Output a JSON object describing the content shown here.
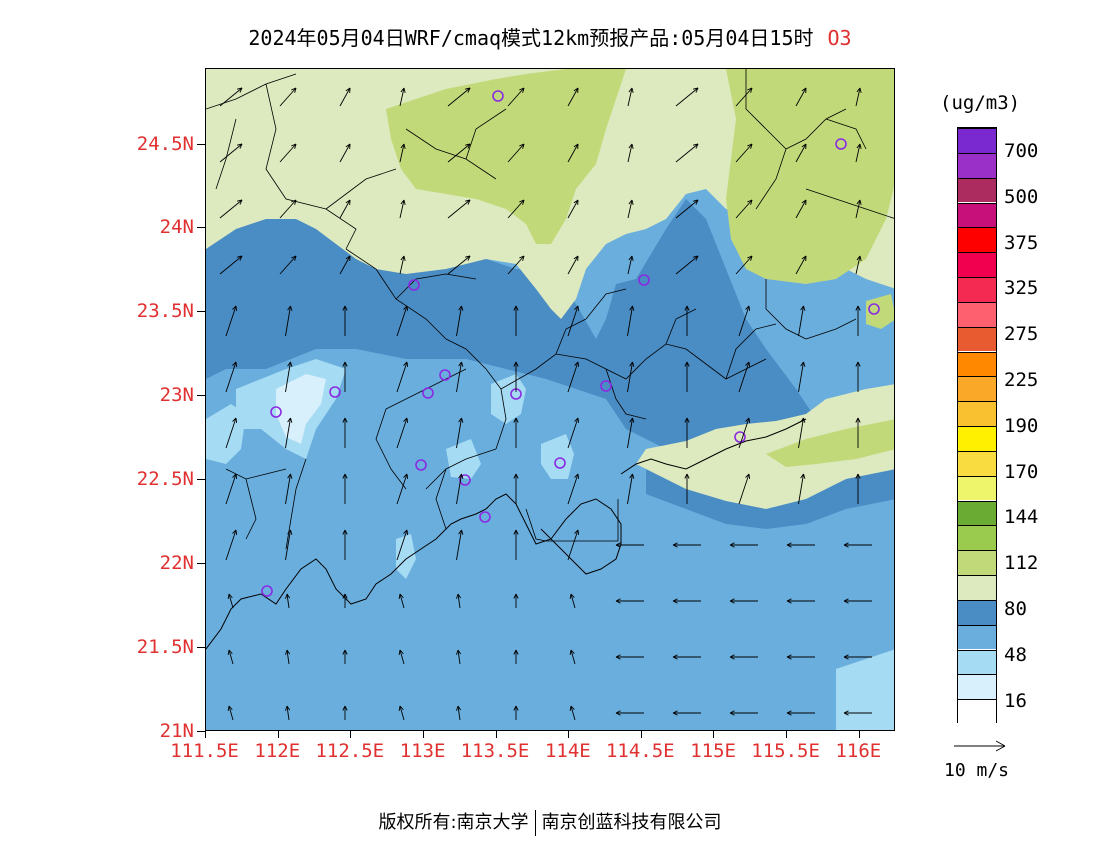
{
  "title": {
    "main": "2024年05月04日WRF/cmaq模式12km预报产品:05月04日15时",
    "variable": "O3"
  },
  "axes": {
    "lat_labels": [
      "24.5N",
      "24N",
      "23.5N",
      "23N",
      "22.5N",
      "22N",
      "21.5N",
      "21N"
    ],
    "lon_labels": [
      "111.5E",
      "112E",
      "112.5E",
      "113E",
      "113.5E",
      "114E",
      "114.5E",
      "115E",
      "115.5E",
      "116E"
    ]
  },
  "colorbar": {
    "unit": "(ug/m3)",
    "labels": [
      "700",
      "500",
      "375",
      "325",
      "275",
      "225",
      "190",
      "170",
      "144",
      "112",
      "80",
      "48",
      "16"
    ],
    "colors": [
      "#ffffff",
      "#d8f0fb",
      "#a6dbf4",
      "#6aaede",
      "#4a8cc4",
      "#dde9be",
      "#c2d97a",
      "#9acb4f",
      "#6aab34",
      "#eef56a",
      "#f8dc40",
      "#fff000",
      "#f9c030",
      "#f9a828",
      "#ff8800",
      "#e85a30",
      "#ff6070",
      "#f52a52",
      "#f20050",
      "#ff0000",
      "#c8107a",
      "#ad2c60",
      "#9a30c8",
      "#7a28d0"
    ]
  },
  "wind": {
    "ref_label": "10  m/s"
  },
  "colors": {
    "axis_label": "#e03030",
    "station_marker": "#8a2be2"
  },
  "footer": {
    "left": "版权所有:南京大学",
    "right": "南京创蓝科技有限公司"
  }
}
